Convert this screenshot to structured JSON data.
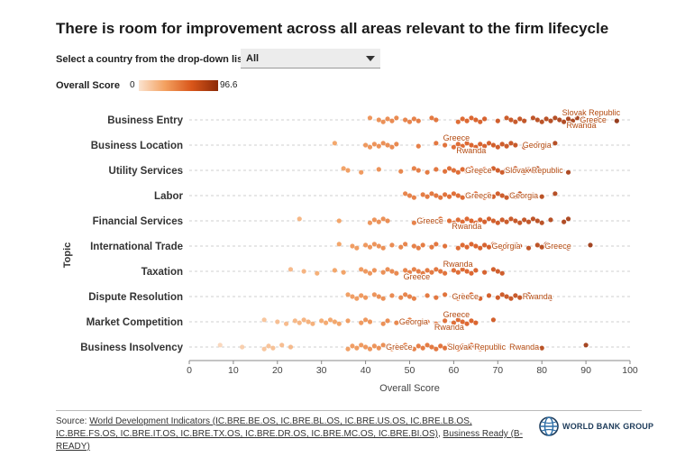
{
  "title": "There is room for improvement across all areas relevant to the firm lifecycle",
  "selector": {
    "label": "Select a country from the drop-down list",
    "value": "All"
  },
  "legend": {
    "title": "Overall Score",
    "min": "0",
    "max": "96.6"
  },
  "colors": {
    "low": "#fbe3cf",
    "mid": "#f3a05f",
    "high": "#d9561a",
    "top": "#8c2a08"
  },
  "chart_data": {
    "type": "scatter",
    "xlabel": "Overall Score",
    "ylabel": "Topic",
    "xlim": [
      0,
      100
    ],
    "xticks": [
      0,
      10,
      20,
      30,
      40,
      50,
      60,
      70,
      80,
      90,
      100
    ],
    "grid": "horizontal dashed",
    "categories": [
      "Business Entry",
      "Business Location",
      "Utility Services",
      "Labor",
      "Financial Services",
      "International Trade",
      "Taxation",
      "Dispute Resolution",
      "Market Competition",
      "Business Insolvency"
    ],
    "series": [
      {
        "values": [
          41,
          43,
          44,
          45,
          46,
          47,
          49,
          50,
          51,
          52,
          55,
          56,
          61,
          62,
          63,
          64,
          65,
          66,
          67,
          70,
          72,
          73,
          74,
          75,
          76,
          78,
          79,
          80,
          81,
          82,
          83,
          84,
          85,
          86,
          87,
          88,
          89,
          92,
          93,
          97
        ]
      },
      {
        "values": [
          33,
          40,
          41,
          42,
          43,
          44,
          45,
          46,
          47,
          52,
          56,
          58,
          60,
          61,
          62,
          63,
          64,
          65,
          66,
          67,
          68,
          69,
          70,
          71,
          72,
          73,
          74,
          76,
          79,
          81,
          83
        ]
      },
      {
        "values": [
          35,
          36,
          39,
          43,
          48,
          51,
          52,
          54,
          56,
          58,
          59,
          60,
          61,
          62,
          63,
          64,
          65,
          66,
          67,
          68,
          69,
          70,
          71,
          72,
          73,
          74,
          75,
          76,
          77,
          78,
          79,
          80,
          86
        ]
      },
      {
        "values": [
          49,
          50,
          51,
          53,
          54,
          55,
          56,
          57,
          58,
          59,
          60,
          61,
          62,
          63,
          64,
          65,
          66,
          67,
          68,
          69,
          70,
          71,
          72,
          73,
          74,
          75,
          76,
          77,
          78,
          80,
          83
        ]
      },
      {
        "values": [
          25,
          34,
          41,
          42,
          43,
          44,
          45,
          51,
          53,
          55,
          57,
          59,
          60,
          61,
          62,
          63,
          64,
          65,
          66,
          67,
          68,
          69,
          70,
          71,
          72,
          73,
          74,
          75,
          76,
          77,
          78,
          79,
          80,
          82,
          85,
          86
        ]
      },
      {
        "values": [
          34,
          37,
          38,
          40,
          41,
          42,
          43,
          44,
          46,
          48,
          49,
          51,
          52,
          53,
          55,
          56,
          58,
          61,
          62,
          63,
          64,
          65,
          66,
          67,
          68,
          69,
          70,
          71,
          72,
          73,
          74,
          75,
          77,
          79,
          80,
          81,
          84,
          86,
          91
        ]
      },
      {
        "values": [
          23,
          26,
          29,
          33,
          35,
          39,
          40,
          41,
          42,
          44,
          45,
          46,
          47,
          49,
          50,
          51,
          52,
          53,
          54,
          55,
          56,
          57,
          58,
          60,
          61,
          62,
          63,
          64,
          65,
          67,
          69,
          70,
          71
        ]
      },
      {
        "values": [
          36,
          37,
          38,
          39,
          40,
          42,
          43,
          44,
          46,
          48,
          49,
          50,
          51,
          54,
          56,
          58,
          60,
          61,
          62,
          63,
          64,
          65,
          66,
          68,
          70,
          71,
          72,
          73,
          74,
          75,
          77,
          79,
          82
        ]
      },
      {
        "values": [
          17,
          20,
          22,
          24,
          25,
          26,
          27,
          28,
          30,
          31,
          32,
          33,
          34,
          36,
          39,
          40,
          41,
          44,
          45,
          47,
          50,
          54,
          56,
          58,
          60,
          61,
          62,
          63,
          64,
          65,
          69
        ]
      },
      {
        "values": [
          7,
          12,
          17,
          18,
          19,
          21,
          23,
          36,
          37,
          38,
          39,
          40,
          41,
          42,
          43,
          44,
          45,
          46,
          47,
          48,
          49,
          50,
          51,
          52,
          53,
          54,
          55,
          56,
          57,
          58,
          59,
          60,
          61,
          62,
          63,
          64,
          65,
          66,
          70,
          80,
          90
        ]
      }
    ],
    "annotations": [
      {
        "topic": 0,
        "x": 85,
        "text": "Slovak Republic",
        "pos": "above"
      },
      {
        "topic": 0,
        "x": 86,
        "text": "Rwanda",
        "pos": "below"
      },
      {
        "topic": 0,
        "x": 88,
        "text": "Greece",
        "pos": "right"
      },
      {
        "topic": 1,
        "x": 58,
        "text": "Greece",
        "pos": "above"
      },
      {
        "topic": 1,
        "x": 61,
        "text": "Rwanda",
        "pos": "below"
      },
      {
        "topic": 1,
        "x": 75,
        "text": "Georgia",
        "pos": "right"
      },
      {
        "topic": 2,
        "x": 62,
        "text": "Greece",
        "pos": "right"
      },
      {
        "topic": 2,
        "x": 71,
        "text": "Slovak Republic",
        "pos": "right"
      },
      {
        "topic": 3,
        "x": 62,
        "text": "Greece",
        "pos": "right"
      },
      {
        "topic": 3,
        "x": 72,
        "text": "Georgia",
        "pos": "right"
      },
      {
        "topic": 4,
        "x": 51,
        "text": "Greece",
        "pos": "right"
      },
      {
        "topic": 4,
        "x": 60,
        "text": "Rwanda",
        "pos": "below"
      },
      {
        "topic": 5,
        "x": 68,
        "text": "Georgia",
        "pos": "right"
      },
      {
        "topic": 5,
        "x": 80,
        "text": "Greece",
        "pos": "right"
      },
      {
        "topic": 6,
        "x": 58,
        "text": "Rwanda",
        "pos": "above"
      },
      {
        "topic": 6,
        "x": 49,
        "text": "Greece",
        "pos": "below"
      },
      {
        "topic": 7,
        "x": 59,
        "text": "Greece",
        "pos": "right"
      },
      {
        "topic": 7,
        "x": 75,
        "text": "Rwanda",
        "pos": "right"
      },
      {
        "topic": 8,
        "x": 58,
        "text": "Greece",
        "pos": "above"
      },
      {
        "topic": 8,
        "x": 47,
        "text": "Georgia",
        "pos": "right"
      },
      {
        "topic": 8,
        "x": 56,
        "text": "Rwanda",
        "pos": "below"
      },
      {
        "topic": 9,
        "x": 44,
        "text": "Greece",
        "pos": "right"
      },
      {
        "topic": 9,
        "x": 58,
        "text": "Slovak Republic",
        "pos": "right"
      },
      {
        "topic": 9,
        "x": 72,
        "text": "Rwanda",
        "pos": "right"
      }
    ]
  },
  "footer": {
    "source_label": "Source:",
    "source_link_1": "World Development Indicators (IC.BRE.BE.OS, IC.BRE.BL.OS, IC.BRE.US.OS, IC.BRE.LB.OS, IC.BRE.FS.OS, IC.BRE.IT.OS, IC.BRE.TX.OS, IC.BRE.DR.OS, IC.BRE.MC.OS, IC.BRE.BI.OS)",
    "separator": ",",
    "source_link_2": "Business Ready (B-READY)",
    "logo_text": "WORLD BANK GROUP",
    "logo_icon": "globe-icon"
  }
}
